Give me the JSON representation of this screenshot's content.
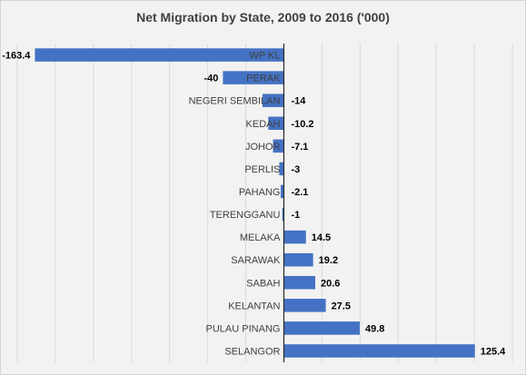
{
  "chart_data": {
    "type": "bar",
    "orientation": "horizontal",
    "title": "Net Migration by State, 2009 to 2016 ('000)",
    "xlabel": "",
    "ylabel": "",
    "xlim": [
      -175,
      150
    ],
    "grid": true,
    "bar_color": "#4472c4",
    "categories": [
      "WP KL",
      "PERAK",
      "NEGERI SEMBILAN",
      "KEDAH",
      "JOHOR",
      "PERLIS",
      "PAHANG",
      "TERENGGANU",
      "MELAKA",
      "SARAWAK",
      "SABAH",
      "KELANTAN",
      "PULAU PINANG",
      "SELANGOR"
    ],
    "values": [
      -163.4,
      -40,
      -14,
      -10.2,
      -7.1,
      -3,
      -2.1,
      -1,
      14.5,
      19.2,
      20.6,
      27.5,
      49.8,
      125.4
    ],
    "value_labels": [
      "-163.4",
      "-40",
      "-14",
      "-10.2",
      "-7.1",
      "-3",
      "-2.1",
      "-1",
      "14.5",
      "19.2",
      "20.6",
      "27.5",
      "49.8",
      "125.4"
    ]
  }
}
